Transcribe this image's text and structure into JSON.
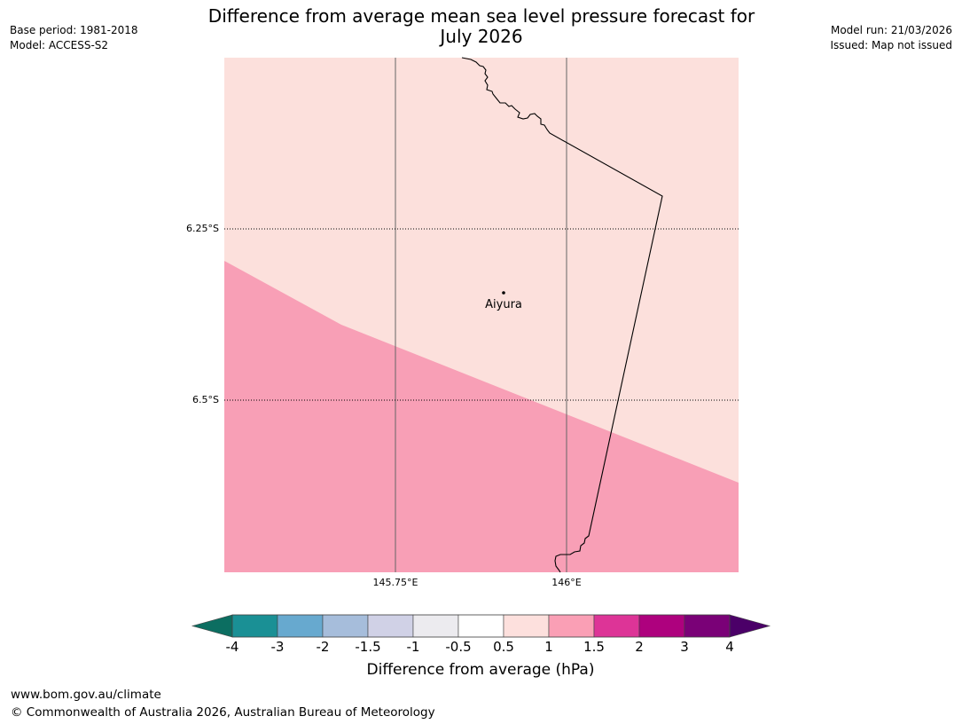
{
  "header": {
    "title_line1": "Difference from average mean sea level pressure forecast for",
    "title_line2": "July 2026",
    "base_period": "Base period: 1981-2018",
    "model": "Model: ACCESS-S2",
    "model_run": "Model run: 21/03/2026",
    "issued": "Issued: Map not issued"
  },
  "map": {
    "lat_labels": [
      "6.25°S",
      "6.5°S"
    ],
    "lon_labels": [
      "145.75°E",
      "146°E"
    ],
    "place": {
      "name": "Aiyura",
      "marker": "dot"
    },
    "fill_colors": {
      "upper": "#fce0dc",
      "lower": "#f89fb6"
    }
  },
  "colorbar": {
    "label": "Difference from average (hPa)",
    "ticks": [
      "-4",
      "-3",
      "-2",
      "-1.5",
      "-1",
      "-0.5",
      "0.5",
      "1",
      "1.5",
      "2",
      "3",
      "4"
    ],
    "under_color": "#0c6e61",
    "over_color": "#4b0068",
    "colors": [
      "#1a9095",
      "#67a9cf",
      "#a6bddb",
      "#d0d1e6",
      "#ecebef",
      "#ffffff",
      "#fde0dd",
      "#fa9fb5",
      "#dd3497",
      "#ae017e",
      "#7a0177"
    ]
  },
  "footer": {
    "url": "www.bom.gov.au/climate",
    "copyright": "© Commonwealth of Australia 2026, Australian Bureau of Meteorology"
  }
}
